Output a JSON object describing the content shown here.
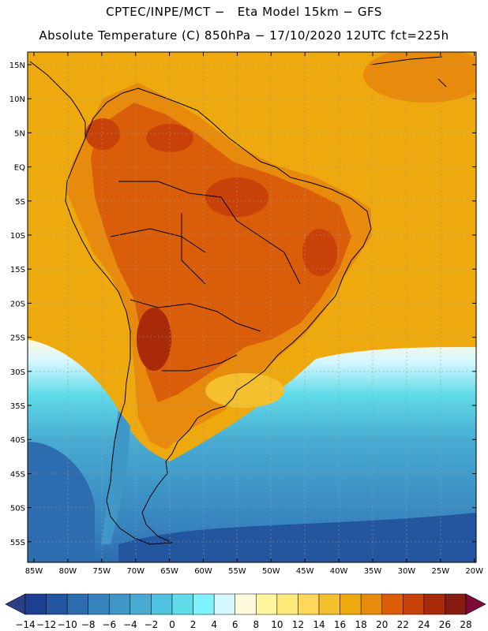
{
  "header": {
    "line1": "CPTEC/INPE/MCT −   Eta Model 15km − GFS",
    "line2": "Absolute Temperature (C) 850hPa − 17/10/2020 12UTC fct=225h"
  },
  "map": {
    "lat_labels": [
      "15N",
      "10N",
      "5N",
      "EQ",
      "5S",
      "10S",
      "15S",
      "20S",
      "25S",
      "30S",
      "35S",
      "40S",
      "45S",
      "50S",
      "55S"
    ],
    "lon_labels": [
      "85W",
      "80W",
      "75W",
      "70W",
      "65W",
      "60W",
      "55W",
      "50W",
      "45W",
      "40W",
      "35W",
      "30W",
      "25W",
      "20W"
    ],
    "ocean_color": "#eea90f",
    "border_color": "#000000"
  },
  "colorbar": {
    "labels": [
      "−14",
      "−12",
      "−10",
      "−8",
      "−6",
      "−4",
      "−2",
      "0",
      "2",
      "4",
      "6",
      "8",
      "10",
      "12",
      "14",
      "16",
      "18",
      "20",
      "22",
      "24",
      "26",
      "28"
    ],
    "low_color": "#2a3f86",
    "high_color": "#7d0a3a",
    "colors": [
      "#1d3f8f",
      "#23569e",
      "#2c6caf",
      "#3782bd",
      "#3f97c8",
      "#48acd2",
      "#4fc3df",
      "#5fdbe9",
      "#7ff3ff",
      "#d5f7ff",
      "#fff9dd",
      "#fff7a0",
      "#ffe97a",
      "#ffd85a",
      "#f4c02e",
      "#eea90f",
      "#e88a0c",
      "#da5e0a",
      "#c84108",
      "#a82a09",
      "#861c10"
    ]
  }
}
